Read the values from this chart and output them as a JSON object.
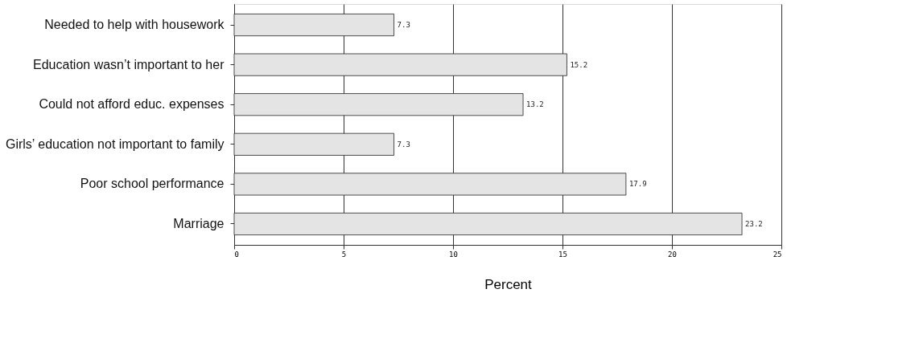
{
  "chart_data": {
    "type": "bar",
    "orientation": "horizontal",
    "categories": [
      "Needed to help with housework",
      "Education wasn’t important to her",
      "Could not afford educ. expenses",
      "Girls’ education not important to family",
      "Poor school performance",
      "Marriage"
    ],
    "values": [
      7.3,
      15.2,
      13.2,
      7.3,
      17.9,
      23.2
    ],
    "color": "#e4e4e4",
    "xlim": [
      0,
      25
    ],
    "xticks": [
      0,
      5,
      10,
      15,
      20,
      25
    ],
    "xlabel": "Percent",
    "grid": "x",
    "data_labels": true
  }
}
